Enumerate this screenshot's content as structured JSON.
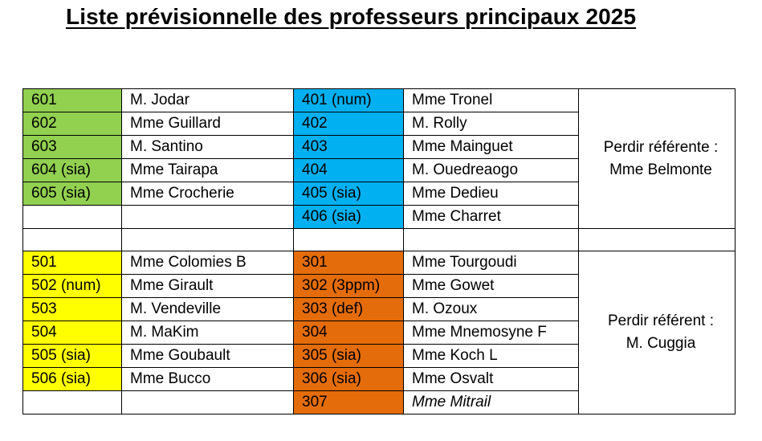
{
  "title": "Liste prévisionnelle des professeurs principaux 2025",
  "colors": {
    "sixieme": "#92d050",
    "quatrieme": "#00b0f0",
    "cinquieme": "#ffff00",
    "troisieme": "#e46c0a"
  },
  "sixieme": [
    {
      "classe": "601",
      "prof": "M. Jodar"
    },
    {
      "classe": "602",
      "prof": "Mme Guillard"
    },
    {
      "classe": "603",
      "prof": "M. Santino"
    },
    {
      "classe": "604 (sia)",
      "prof": "Mme Tairapa"
    },
    {
      "classe": "605 (sia)",
      "prof": "Mme Crocherie"
    }
  ],
  "quatrieme": [
    {
      "classe": "401 (num)",
      "prof": "Mme Tronel"
    },
    {
      "classe": "402",
      "prof": "M. Rolly"
    },
    {
      "classe": "403",
      "prof": "Mme Mainguet"
    },
    {
      "classe": "404",
      "prof": "M. Ouedreaogo"
    },
    {
      "classe": "405 (sia)",
      "prof": "Mme Dedieu"
    },
    {
      "classe": "406 (sia)",
      "prof": "Mme Charret"
    }
  ],
  "cinquieme": [
    {
      "classe": "501",
      "prof": "Mme Colomies B"
    },
    {
      "classe": "502 (num)",
      "prof": "Mme Girault"
    },
    {
      "classe": "503",
      "prof": "M. Vendeville"
    },
    {
      "classe": "504",
      "prof": "M. MaKim"
    },
    {
      "classe": "505 (sia)",
      "prof": "Mme Goubault"
    },
    {
      "classe": "506 (sia)",
      "prof": "Mme Bucco"
    }
  ],
  "troisieme": [
    {
      "classe": "301",
      "prof": "Mme Tourgoudi"
    },
    {
      "classe": "302 (3ppm)",
      "prof": "Mme Gowet"
    },
    {
      "classe": "303 (def)",
      "prof": "M. Ozoux"
    },
    {
      "classe": "304",
      "prof": "Mme Mnemosyne F"
    },
    {
      "classe": "305 (sia)",
      "prof": "Mme Koch L"
    },
    {
      "classe": "306 (sia)",
      "prof": "Mme Osvalt"
    },
    {
      "classe": "307",
      "prof": "Mme Mitrail"
    }
  ],
  "referents": {
    "top": {
      "line1": "Perdir référente :",
      "line2": "Mme Belmonte"
    },
    "bottom": {
      "line1": "Perdir référent :",
      "line2": "M. Cuggia"
    }
  }
}
